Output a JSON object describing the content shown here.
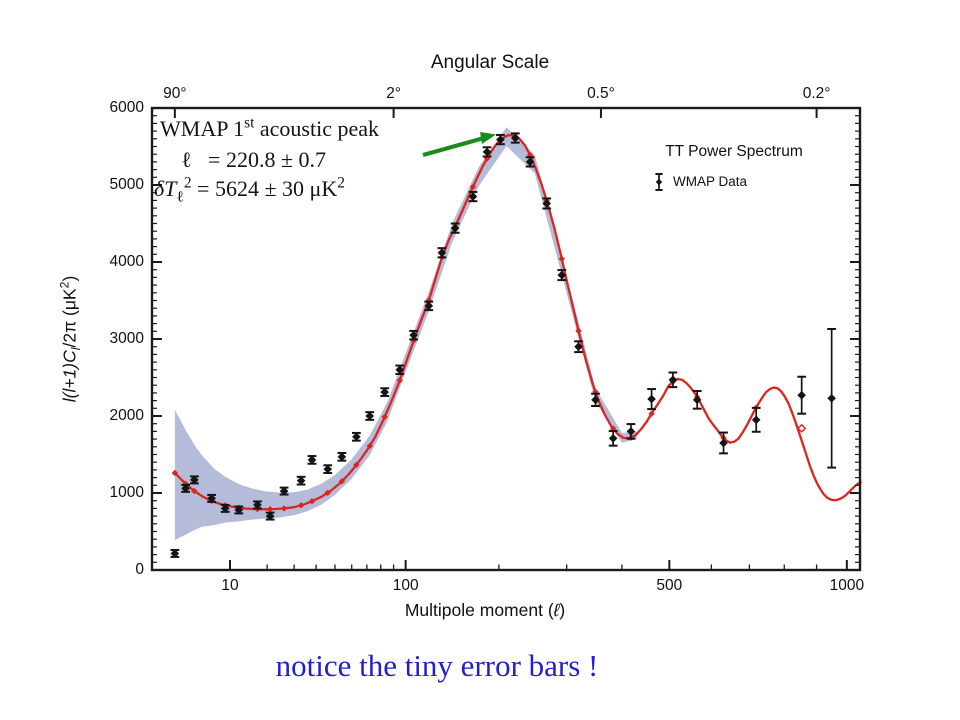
{
  "chart_data": {
    "type": "line",
    "top_axis_title": "Angular Scale",
    "xlabel": {
      "pre": "Multipole moment (",
      "italic_l": "ℓ",
      "post": ")"
    },
    "ylabel": {
      "pre": "l(l+1)C",
      "sub": "l",
      "mid": "/2π (μK",
      "sup": "2",
      "end": ")"
    },
    "x_scale": "power-law l^0.4 (log-like)",
    "ylim": [
      0,
      6000
    ],
    "y_major_ticks": [
      [
        0,
        "0"
      ],
      [
        1000,
        "1000"
      ],
      [
        2000,
        "2000"
      ],
      [
        3000,
        "3000"
      ],
      [
        4000,
        "4000"
      ],
      [
        5000,
        "5000"
      ],
      [
        6000,
        "6000"
      ]
    ],
    "y_minor_step": 100,
    "x_major_ticks": [
      [
        10,
        "10"
      ],
      [
        100,
        "100"
      ],
      [
        500,
        "500"
      ],
      [
        1000,
        "1000"
      ]
    ],
    "x_minor_ticks": [
      20,
      30,
      40,
      50,
      60,
      70,
      80,
      90,
      200,
      300,
      400,
      600,
      700,
      800,
      900
    ],
    "top_ticks": [
      [
        2,
        "90°"
      ],
      [
        90,
        "2°"
      ],
      [
        360,
        "0.5°"
      ],
      [
        900,
        "0.2°"
      ]
    ],
    "legend": {
      "title": "TT Power Spectrum",
      "entry": "WMAP Data"
    },
    "annotation": {
      "line1": {
        "pre": "WMAP 1",
        "sup": "st",
        "post": " acoustic peak"
      },
      "line2": "ℓ   = 220.8 ± 0.7",
      "line3": {
        "pre": "δT",
        "sub": "ℓ",
        "sup": "2",
        "mid": " = 5624 ± 30 μK",
        "sup2": "2"
      }
    },
    "caption": "notice the tiny error bars !",
    "colors": {
      "model_curve": "#dc251c",
      "cosmic_variance_band": "#b5bcd9",
      "data_points": "#141414",
      "arrow": "#1d8a1d",
      "caption": "#2121cb",
      "frame": "#1a1a1a"
    },
    "data_points": [
      [
        2,
        215,
        45
      ],
      [
        3,
        1060,
        45
      ],
      [
        4,
        1170,
        45
      ],
      [
        6.5,
        930,
        45
      ],
      [
        9,
        800,
        45
      ],
      [
        12,
        780,
        45
      ],
      [
        17,
        845,
        45
      ],
      [
        21,
        700,
        45
      ],
      [
        26,
        1025,
        45
      ],
      [
        33,
        1160,
        50
      ],
      [
        38,
        1430,
        50
      ],
      [
        46,
        1310,
        50
      ],
      [
        54,
        1470,
        50
      ],
      [
        63,
        1730,
        50
      ],
      [
        72,
        2000,
        50
      ],
      [
        83,
        2310,
        50
      ],
      [
        95,
        2600,
        55
      ],
      [
        107,
        3050,
        55
      ],
      [
        121,
        3430,
        55
      ],
      [
        134,
        4120,
        60
      ],
      [
        148,
        4440,
        60
      ],
      [
        168,
        4850,
        60
      ],
      [
        185,
        5430,
        60
      ],
      [
        202,
        5590,
        60
      ],
      [
        222,
        5610,
        60
      ],
      [
        243,
        5300,
        60
      ],
      [
        268,
        4760,
        65
      ],
      [
        292,
        3830,
        65
      ],
      [
        320,
        2900,
        70
      ],
      [
        350,
        2210,
        80
      ],
      [
        383,
        1710,
        95
      ],
      [
        418,
        1800,
        95
      ],
      [
        461,
        2220,
        130
      ],
      [
        508,
        2470,
        95
      ],
      [
        565,
        2210,
        115
      ],
      [
        631,
        1650,
        135
      ],
      [
        719,
        1950,
        155
      ],
      [
        853,
        2270,
        240
      ],
      [
        949,
        2230,
        900
      ]
    ],
    "model_curve": [
      [
        2,
        1260
      ],
      [
        3,
        1120
      ],
      [
        4,
        1025
      ],
      [
        5,
        960
      ],
      [
        6,
        915
      ],
      [
        7,
        880
      ],
      [
        8,
        858
      ],
      [
        9,
        840
      ],
      [
        10,
        828
      ],
      [
        12,
        808
      ],
      [
        14,
        797
      ],
      [
        17,
        790
      ],
      [
        20,
        788
      ],
      [
        23,
        792
      ],
      [
        26,
        800
      ],
      [
        30,
        815
      ],
      [
        34,
        848
      ],
      [
        38,
        893
      ],
      [
        43,
        955
      ],
      [
        48,
        1035
      ],
      [
        53,
        1130
      ],
      [
        58,
        1240
      ],
      [
        64,
        1390
      ],
      [
        70,
        1550
      ],
      [
        76,
        1730
      ],
      [
        82,
        1950
      ],
      [
        88,
        2180
      ],
      [
        94,
        2420
      ],
      [
        100,
        2680
      ],
      [
        107,
        2980
      ],
      [
        114,
        3250
      ],
      [
        121,
        3500
      ],
      [
        128,
        3800
      ],
      [
        134,
        4060
      ],
      [
        141,
        4280
      ],
      [
        148,
        4460
      ],
      [
        156,
        4670
      ],
      [
        164,
        4880
      ],
      [
        172,
        5070
      ],
      [
        180,
        5250
      ],
      [
        188,
        5400
      ],
      [
        196,
        5520
      ],
      [
        204,
        5600
      ],
      [
        212,
        5645
      ],
      [
        220,
        5645
      ],
      [
        228,
        5600
      ],
      [
        236,
        5510
      ],
      [
        244,
        5370
      ],
      [
        252,
        5200
      ],
      [
        261,
        4990
      ],
      [
        270,
        4740
      ],
      [
        280,
        4440
      ],
      [
        290,
        4110
      ],
      [
        300,
        3760
      ],
      [
        311,
        3400
      ],
      [
        322,
        3040
      ],
      [
        333,
        2720
      ],
      [
        344,
        2440
      ],
      [
        355,
        2210
      ],
      [
        367,
        2020
      ],
      [
        379,
        1870
      ],
      [
        391,
        1770
      ],
      [
        403,
        1715
      ],
      [
        415,
        1710
      ],
      [
        427,
        1750
      ],
      [
        439,
        1830
      ],
      [
        451,
        1930
      ],
      [
        463,
        2050
      ],
      [
        475,
        2160
      ],
      [
        487,
        2270
      ],
      [
        498,
        2390
      ],
      [
        509,
        2450
      ],
      [
        519,
        2480
      ],
      [
        529,
        2470
      ],
      [
        539,
        2430
      ],
      [
        549,
        2370
      ],
      [
        560,
        2290
      ],
      [
        571,
        2190
      ],
      [
        582,
        2080
      ],
      [
        593,
        1970
      ],
      [
        604,
        1890
      ],
      [
        615,
        1820
      ],
      [
        626,
        1740
      ],
      [
        637,
        1685
      ],
      [
        648,
        1655
      ],
      [
        659,
        1665
      ],
      [
        670,
        1705
      ],
      [
        681,
        1780
      ],
      [
        692,
        1870
      ],
      [
        703,
        1970
      ],
      [
        714,
        2070
      ],
      [
        725,
        2160
      ],
      [
        736,
        2240
      ],
      [
        747,
        2310
      ],
      [
        758,
        2350
      ],
      [
        769,
        2370
      ],
      [
        780,
        2360
      ],
      [
        791,
        2320
      ],
      [
        802,
        2250
      ],
      [
        813,
        2160
      ],
      [
        824,
        2040
      ],
      [
        835,
        1910
      ],
      [
        846,
        1770
      ],
      [
        857,
        1630
      ],
      [
        868,
        1490
      ],
      [
        879,
        1350
      ],
      [
        890,
        1230
      ],
      [
        901,
        1130
      ],
      [
        912,
        1050
      ],
      [
        923,
        985
      ],
      [
        934,
        940
      ],
      [
        945,
        915
      ],
      [
        956,
        905
      ],
      [
        967,
        910
      ],
      [
        978,
        925
      ],
      [
        989,
        950
      ],
      [
        1000,
        985
      ],
      [
        1012,
        1030
      ],
      [
        1024,
        1075
      ],
      [
        1036,
        1115
      ],
      [
        1048,
        1140
      ]
    ],
    "cosmic_variance_band": {
      "upper": [
        [
          2,
          2080
        ],
        [
          3,
          1820
        ],
        [
          4,
          1625
        ],
        [
          5,
          1490
        ],
        [
          7,
          1310
        ],
        [
          9,
          1210
        ],
        [
          12,
          1115
        ],
        [
          15,
          1065
        ],
        [
          19,
          1025
        ],
        [
          24,
          1005
        ],
        [
          30,
          1010
        ],
        [
          36,
          1045
        ],
        [
          43,
          1125
        ],
        [
          50,
          1235
        ],
        [
          60,
          1440
        ],
        [
          72,
          1745
        ],
        [
          85,
          2180
        ],
        [
          100,
          2815
        ],
        [
          120,
          3570
        ],
        [
          145,
          4508
        ],
        [
          175,
          5238
        ],
        [
          210,
          5750
        ],
        [
          250,
          5390
        ],
        [
          300,
          3810
        ],
        [
          350,
          2360
        ],
        [
          400,
          1780
        ],
        [
          430,
          1800
        ]
      ],
      "lower": [
        [
          2,
          390
        ],
        [
          3,
          460
        ],
        [
          4,
          520
        ],
        [
          5,
          560
        ],
        [
          7,
          585
        ],
        [
          9,
          615
        ],
        [
          12,
          631
        ],
        [
          15,
          652
        ],
        [
          19,
          666
        ],
        [
          24,
          681
        ],
        [
          30,
          710
        ],
        [
          36,
          765
        ],
        [
          43,
          855
        ],
        [
          50,
          975
        ],
        [
          60,
          1185
        ],
        [
          72,
          1490
        ],
        [
          85,
          1930
        ],
        [
          100,
          2570
        ],
        [
          120,
          3325
        ],
        [
          145,
          4262
        ],
        [
          175,
          4990
        ],
        [
          210,
          5505
        ],
        [
          250,
          5150
        ],
        [
          300,
          3595
        ],
        [
          350,
          2185
        ],
        [
          400,
          1650
        ],
        [
          430,
          1700
        ]
      ]
    },
    "open_model_marker": {
      "l": 853,
      "value": 1840
    }
  }
}
